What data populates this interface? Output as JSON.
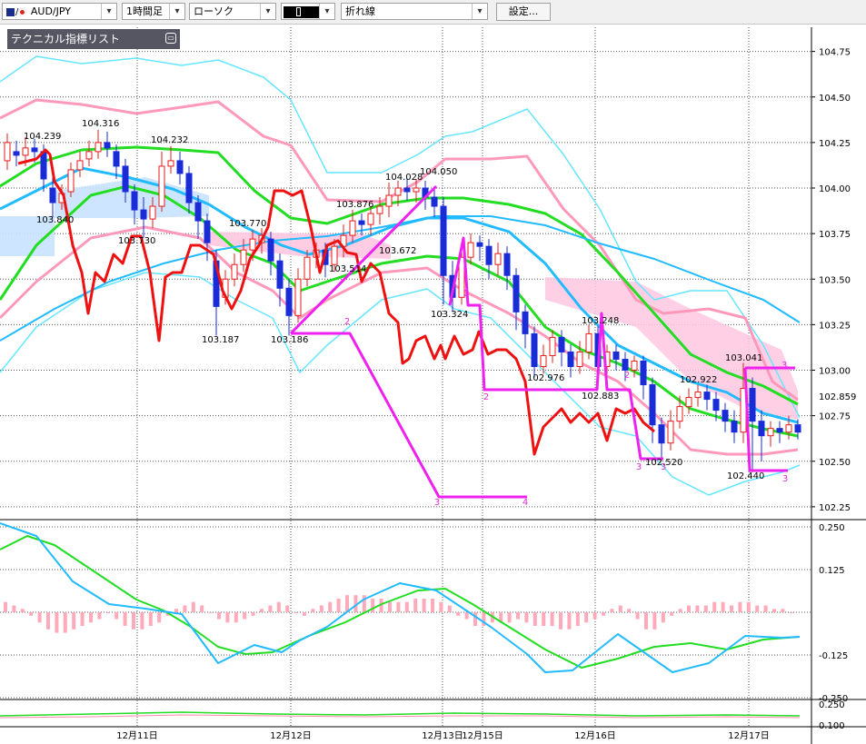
{
  "toolbar": {
    "symbol": "AUD/JPY",
    "timeframe": "1時間足",
    "chart_style": "ローソク",
    "color_label": "",
    "line_tool": "折れ線",
    "settings_label": "設定..."
  },
  "indicator_panel": {
    "title": "テクニカル指標リスト"
  },
  "colors": {
    "candle_up": "#e51b1b",
    "candle_down": "#1a2bd8",
    "bollinger_1": "#ff99bb",
    "bollinger_2": "#66e6ff",
    "ma_green": "#22dd22",
    "ma_blue": "#22bbff",
    "lagging_red": "#ee1111",
    "wave_magenta": "#ee22ee",
    "cloud_pink": "#ffc8e0",
    "cloud_blue": "#c8e2ff"
  },
  "chart_data": {
    "type": "line",
    "title": "",
    "ylim": [
      102.2,
      104.85
    ],
    "y_ticks": [
      "104.75",
      "104.50",
      "104.25",
      "104.00",
      "103.75",
      "103.50",
      "103.25",
      "103.00",
      "102.75",
      "102.50",
      "102.25"
    ],
    "current_price": "102.859",
    "x_labels": [
      "12月11日",
      "12月12日",
      "12月13日",
      "12月15日",
      "12月16日",
      "12月17日"
    ],
    "annotations": [
      "104.239",
      "104.316",
      "104.232",
      "103.840",
      "103.730",
      "103.187",
      "103.770",
      "103.186",
      "103.876",
      "104.028",
      "104.050",
      "103.672",
      "103.514",
      "103.324",
      "103.248",
      "102.976",
      "102.883",
      "102.922",
      "102.520",
      "103.041",
      "102.440"
    ],
    "wave_labels": [
      "2",
      "2",
      "2",
      "3",
      "4",
      "2",
      "3",
      "3",
      "3",
      "3"
    ],
    "oscillator": {
      "y_ticks": [
        "0.250",
        "0.125",
        "-0.125",
        "-0.250"
      ],
      "histogram": [
        0.03,
        0.02,
        0.01,
        -0.01,
        -0.03,
        -0.05,
        -0.06,
        -0.06,
        -0.05,
        -0.04,
        -0.03,
        -0.02,
        0.0,
        -0.02,
        -0.04,
        -0.05,
        -0.05,
        -0.04,
        -0.03,
        -0.01,
        0.01,
        0.02,
        0.03,
        0.02,
        0.0,
        -0.02,
        -0.03,
        -0.03,
        -0.02,
        -0.01,
        0.01,
        0.02,
        0.03,
        0.02,
        0.0,
        -0.01,
        0.01,
        0.02,
        0.03,
        0.04,
        0.05,
        0.05,
        0.05,
        0.04,
        0.04,
        0.03,
        0.03,
        0.03,
        0.04,
        0.04,
        0.04,
        0.03,
        0.02,
        -0.01,
        -0.02,
        -0.04,
        -0.04,
        -0.03,
        -0.03,
        -0.03,
        -0.02,
        -0.03,
        -0.04,
        -0.04,
        -0.04,
        -0.05,
        -0.05,
        -0.04,
        -0.03,
        -0.02,
        -0.01,
        0.01,
        0.02,
        0.01,
        -0.02,
        -0.05,
        -0.05,
        -0.03,
        -0.01,
        0.01,
        0.02,
        0.02,
        0.02,
        0.03,
        0.03,
        0.02,
        0.03,
        0.03,
        0.02,
        0.02,
        0.01,
        0.01,
        0.0
      ]
    },
    "lower_panel": {
      "y_ticks": [
        "0.250",
        "0.100"
      ]
    }
  }
}
